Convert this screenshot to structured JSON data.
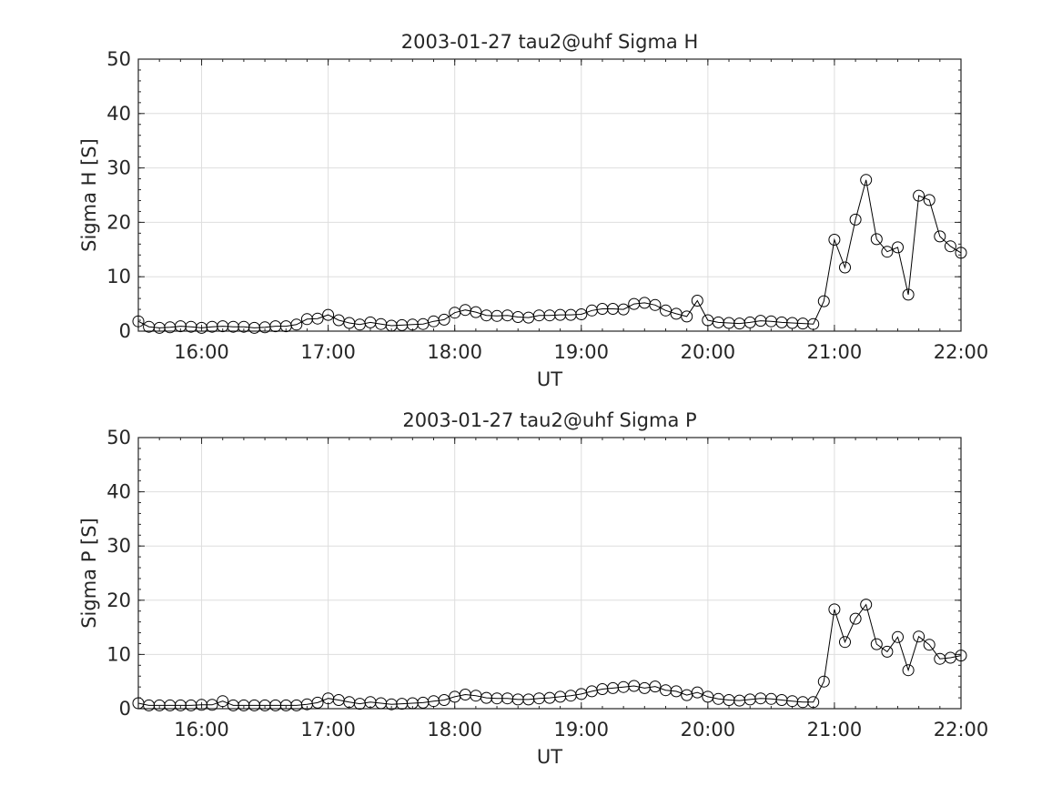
{
  "chart_data": [
    {
      "type": "line",
      "title": "2003-01-27  tau2@uhf Sigma H",
      "xlabel": "UT",
      "ylabel": "Sigma H [S]",
      "xlim": [
        "15:30",
        "22:00"
      ],
      "ylim": [
        0,
        50
      ],
      "xticks": [
        "16:00",
        "17:00",
        "18:00",
        "19:00",
        "20:00",
        "21:00",
        "22:00"
      ],
      "yticks": [
        "0",
        "10",
        "20",
        "30",
        "40",
        "50"
      ],
      "grid": true,
      "marker": "circle",
      "series": [
        {
          "x": [
            "15:30",
            "15:35",
            "15:40",
            "15:45",
            "15:50",
            "15:55",
            "16:00",
            "16:05",
            "16:10",
            "16:15",
            "16:20",
            "16:25",
            "16:30",
            "16:35",
            "16:40",
            "16:45",
            "16:50",
            "16:55",
            "17:00",
            "17:05",
            "17:10",
            "17:15",
            "17:20",
            "17:25",
            "17:30",
            "17:35",
            "17:40",
            "17:45",
            "17:50",
            "17:55",
            "18:00",
            "18:05",
            "18:10",
            "18:15",
            "18:20",
            "18:25",
            "18:30",
            "18:35",
            "18:40",
            "18:45",
            "18:50",
            "18:55",
            "19:00",
            "19:05",
            "19:10",
            "19:15",
            "19:20",
            "19:25",
            "19:30",
            "19:35",
            "19:40",
            "19:45",
            "19:50",
            "19:55",
            "20:00",
            "20:05",
            "20:10",
            "20:15",
            "20:20",
            "20:25",
            "20:30",
            "20:35",
            "20:40",
            "20:45",
            "20:50",
            "20:55",
            "21:00",
            "21:05",
            "21:10",
            "21:15",
            "21:20",
            "21:25",
            "21:30",
            "21:35",
            "21:40",
            "21:45",
            "21:50",
            "21:55",
            "22:00"
          ],
          "y": [
            1.8,
            0.8,
            0.6,
            0.7,
            0.9,
            0.8,
            0.6,
            0.8,
            0.9,
            0.8,
            0.8,
            0.6,
            0.7,
            0.9,
            0.9,
            1.2,
            2.2,
            2.3,
            3.0,
            2.0,
            1.5,
            1.2,
            1.6,
            1.3,
            1.0,
            1.1,
            1.2,
            1.3,
            1.8,
            2.1,
            3.4,
            3.9,
            3.5,
            2.9,
            2.8,
            2.9,
            2.6,
            2.5,
            2.9,
            2.9,
            3.0,
            3.0,
            3.1,
            3.8,
            4.1,
            4.1,
            4.0,
            5.0,
            5.2,
            4.8,
            3.8,
            3.2,
            2.7,
            5.6,
            2.0,
            1.6,
            1.5,
            1.4,
            1.6,
            1.9,
            1.8,
            1.6,
            1.5,
            1.4,
            1.3,
            5.5,
            16.8,
            11.7,
            20.5,
            27.8,
            16.9,
            14.6,
            15.4,
            6.7,
            24.9,
            24.1,
            17.4,
            15.6,
            14.4
          ]
        }
      ]
    },
    {
      "type": "line",
      "title": "2003-01-27  tau2@uhf Sigma P",
      "xlabel": "UT",
      "ylabel": "Sigma P [S]",
      "xlim": [
        "15:30",
        "22:00"
      ],
      "ylim": [
        0,
        50
      ],
      "xticks": [
        "16:00",
        "17:00",
        "18:00",
        "19:00",
        "20:00",
        "21:00",
        "22:00"
      ],
      "yticks": [
        "0",
        "10",
        "20",
        "30",
        "40",
        "50"
      ],
      "grid": true,
      "marker": "circle",
      "series": [
        {
          "x": [
            "15:30",
            "15:35",
            "15:40",
            "15:45",
            "15:50",
            "15:55",
            "16:00",
            "16:05",
            "16:10",
            "16:15",
            "16:20",
            "16:25",
            "16:30",
            "16:35",
            "16:40",
            "16:45",
            "16:50",
            "16:55",
            "17:00",
            "17:05",
            "17:10",
            "17:15",
            "17:20",
            "17:25",
            "17:30",
            "17:35",
            "17:40",
            "17:45",
            "17:50",
            "17:55",
            "18:00",
            "18:05",
            "18:10",
            "18:15",
            "18:20",
            "18:25",
            "18:30",
            "18:35",
            "18:40",
            "18:45",
            "18:50",
            "18:55",
            "19:00",
            "19:05",
            "19:10",
            "19:15",
            "19:20",
            "19:25",
            "19:30",
            "19:35",
            "19:40",
            "19:45",
            "19:50",
            "19:55",
            "20:00",
            "20:05",
            "20:10",
            "20:15",
            "20:20",
            "20:25",
            "20:30",
            "20:35",
            "20:40",
            "20:45",
            "20:50",
            "20:55",
            "21:00",
            "21:05",
            "21:10",
            "21:15",
            "21:20",
            "21:25",
            "21:30",
            "21:35",
            "21:40",
            "21:45",
            "21:50",
            "21:55",
            "22:00"
          ],
          "y": [
            1.0,
            0.6,
            0.6,
            0.6,
            0.6,
            0.6,
            0.7,
            0.7,
            1.4,
            0.6,
            0.6,
            0.6,
            0.6,
            0.6,
            0.6,
            0.6,
            0.8,
            1.1,
            1.9,
            1.6,
            1.2,
            0.9,
            1.2,
            1.0,
            0.8,
            0.9,
            1.0,
            1.1,
            1.4,
            1.6,
            2.2,
            2.6,
            2.4,
            2.0,
            1.9,
            1.9,
            1.7,
            1.7,
            1.9,
            2.0,
            2.2,
            2.4,
            2.7,
            3.2,
            3.6,
            3.8,
            4.0,
            4.2,
            3.8,
            4.1,
            3.4,
            3.2,
            2.5,
            3.0,
            2.2,
            1.8,
            1.6,
            1.5,
            1.7,
            1.9,
            1.8,
            1.6,
            1.4,
            1.2,
            1.2,
            5.0,
            18.3,
            12.3,
            16.6,
            19.2,
            11.9,
            10.5,
            13.2,
            7.1,
            13.3,
            11.8,
            9.2,
            9.4,
            9.8
          ]
        }
      ]
    }
  ]
}
